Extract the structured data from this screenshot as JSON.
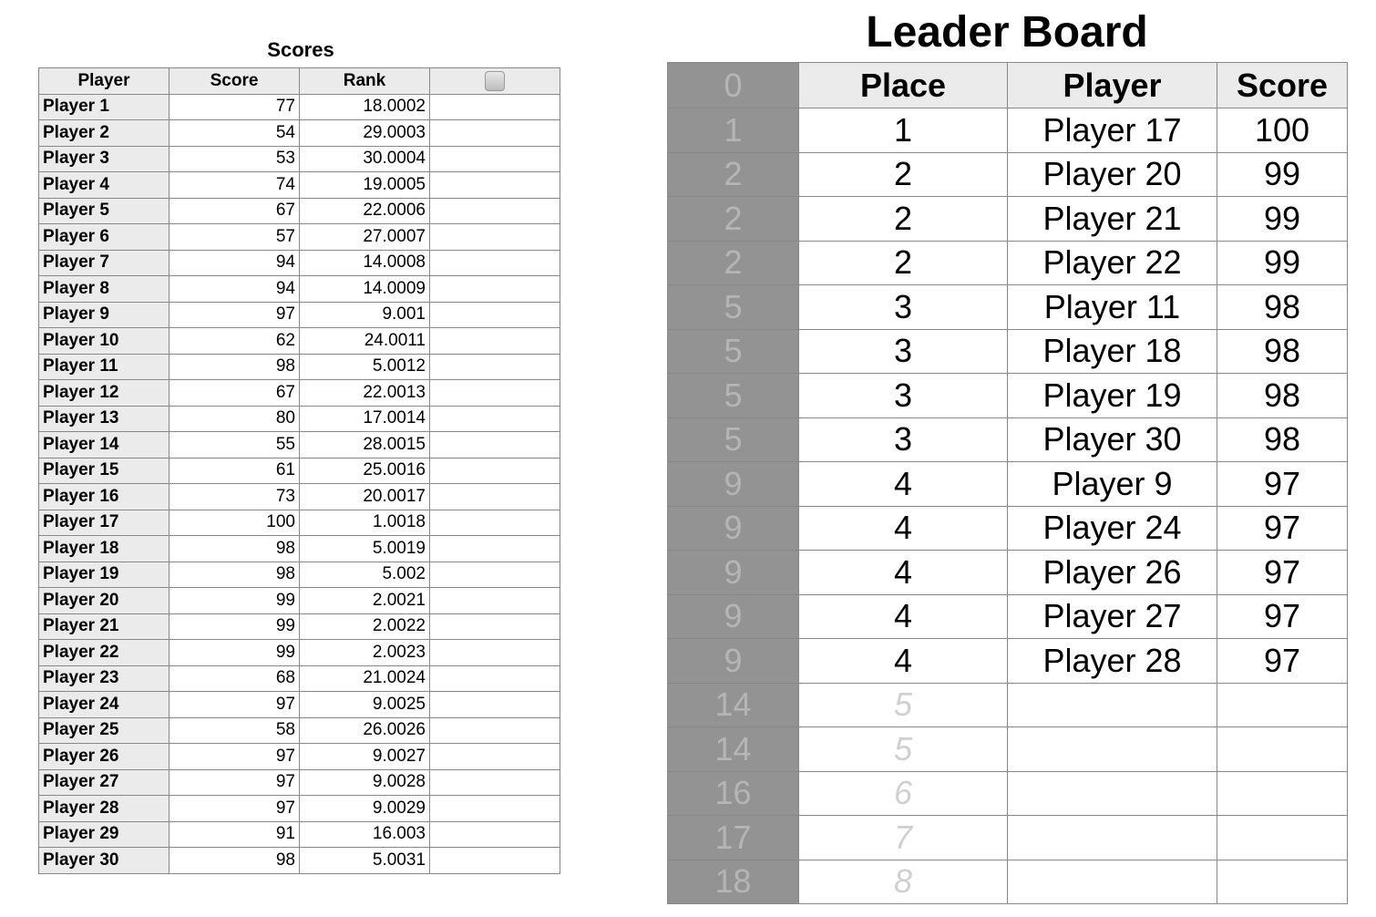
{
  "scores": {
    "title": "Scores",
    "headers": [
      "Player",
      "Score",
      "Rank"
    ],
    "rows": [
      [
        "Player 1",
        "77",
        "18.0002"
      ],
      [
        "Player 2",
        "54",
        "29.0003"
      ],
      [
        "Player 3",
        "53",
        "30.0004"
      ],
      [
        "Player 4",
        "74",
        "19.0005"
      ],
      [
        "Player 5",
        "67",
        "22.0006"
      ],
      [
        "Player 6",
        "57",
        "27.0007"
      ],
      [
        "Player 7",
        "94",
        "14.0008"
      ],
      [
        "Player 8",
        "94",
        "14.0009"
      ],
      [
        "Player 9",
        "97",
        "9.001"
      ],
      [
        "Player 10",
        "62",
        "24.0011"
      ],
      [
        "Player 11",
        "98",
        "5.0012"
      ],
      [
        "Player 12",
        "67",
        "22.0013"
      ],
      [
        "Player 13",
        "80",
        "17.0014"
      ],
      [
        "Player 14",
        "55",
        "28.0015"
      ],
      [
        "Player 15",
        "61",
        "25.0016"
      ],
      [
        "Player 16",
        "73",
        "20.0017"
      ],
      [
        "Player 17",
        "100",
        "1.0018"
      ],
      [
        "Player 18",
        "98",
        "5.0019"
      ],
      [
        "Player 19",
        "98",
        "5.002"
      ],
      [
        "Player 20",
        "99",
        "2.0021"
      ],
      [
        "Player 21",
        "99",
        "2.0022"
      ],
      [
        "Player 22",
        "99",
        "2.0023"
      ],
      [
        "Player 23",
        "68",
        "21.0024"
      ],
      [
        "Player 24",
        "97",
        "9.0025"
      ],
      [
        "Player 25",
        "58",
        "26.0026"
      ],
      [
        "Player 26",
        "97",
        "9.0027"
      ],
      [
        "Player 27",
        "97",
        "9.0028"
      ],
      [
        "Player 28",
        "97",
        "9.0029"
      ],
      [
        "Player 29",
        "91",
        "16.003"
      ],
      [
        "Player 30",
        "98",
        "5.0031"
      ]
    ]
  },
  "leader": {
    "title": "Leader Board",
    "headers": [
      "0",
      "Place",
      "Player",
      "Score"
    ],
    "rows": [
      [
        "1",
        "1",
        "Player 17",
        "100"
      ],
      [
        "2",
        "2",
        "Player 20",
        "99"
      ],
      [
        "2",
        "2",
        "Player 21",
        "99"
      ],
      [
        "2",
        "2",
        "Player 22",
        "99"
      ],
      [
        "5",
        "3",
        "Player 11",
        "98"
      ],
      [
        "5",
        "3",
        "Player 18",
        "98"
      ],
      [
        "5",
        "3",
        "Player 19",
        "98"
      ],
      [
        "5",
        "3",
        "Player 30",
        "98"
      ],
      [
        "9",
        "4",
        "Player 9",
        "97"
      ],
      [
        "9",
        "4",
        "Player 24",
        "97"
      ],
      [
        "9",
        "4",
        "Player 26",
        "97"
      ],
      [
        "9",
        "4",
        "Player 27",
        "97"
      ],
      [
        "9",
        "4",
        "Player 28",
        "97"
      ],
      [
        "14",
        "5",
        "",
        ""
      ],
      [
        "14",
        "5",
        "",
        ""
      ],
      [
        "16",
        "6",
        "",
        ""
      ],
      [
        "17",
        "7",
        "",
        ""
      ],
      [
        "18",
        "8",
        "",
        ""
      ]
    ]
  }
}
